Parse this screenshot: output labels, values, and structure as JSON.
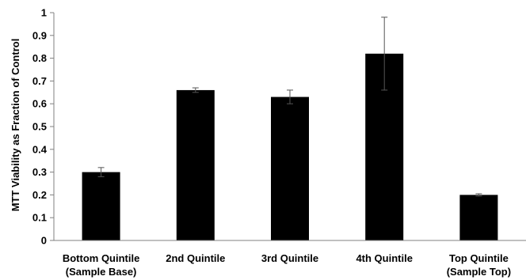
{
  "chart_data": {
    "type": "bar",
    "ylabel": "MTT Viability as Fraction of Control",
    "ylim": [
      0,
      1
    ],
    "yticks": [
      0,
      0.1,
      0.2,
      0.3,
      0.4,
      0.5,
      0.6,
      0.7,
      0.8,
      0.9,
      1
    ],
    "ytick_labels": [
      "0",
      "0.1",
      "0.2",
      "0.3",
      "0.4",
      "0.5",
      "0.6",
      "0.7",
      "0.8",
      "0.9",
      "1"
    ],
    "categories": [
      [
        "Bottom Quintile",
        "(Sample Base)"
      ],
      [
        "2nd Quintile"
      ],
      [
        "3rd Quintile"
      ],
      [
        "4th Quintile"
      ],
      [
        "Top Quintile",
        "(Sample Top)"
      ]
    ],
    "values": [
      0.3,
      0.66,
      0.63,
      0.82,
      0.2
    ],
    "errors": [
      0.02,
      0.01,
      0.03,
      0.16,
      0.005
    ],
    "bar_color": "#000000",
    "grid": false,
    "legend": "none"
  }
}
